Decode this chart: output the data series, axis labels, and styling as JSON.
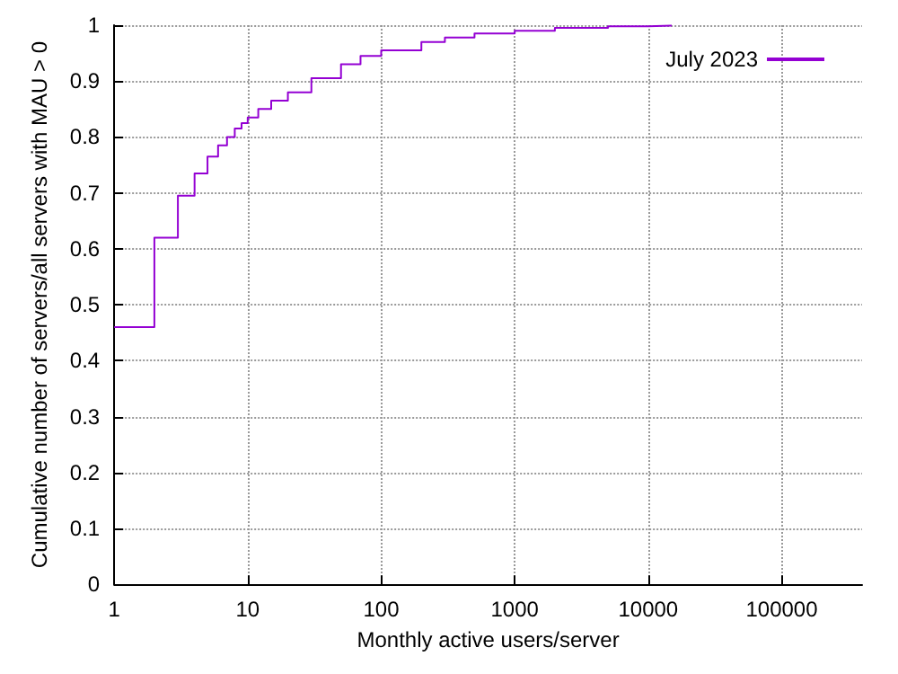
{
  "chart_data": {
    "type": "step",
    "xlabel": "Monthly active users/server",
    "ylabel": "Cumulative number of servers/all servers with MAU > 0",
    "series": [
      {
        "name": "July 2023",
        "color": "#9400d3",
        "x": [
          1,
          2,
          3,
          4,
          5,
          6,
          7,
          8,
          9,
          10,
          12,
          15,
          20,
          30,
          50,
          70,
          100,
          200,
          300,
          500,
          1000,
          2000,
          5000,
          10000,
          15000
        ],
        "values": [
          0.46,
          0.62,
          0.695,
          0.735,
          0.765,
          0.785,
          0.8,
          0.815,
          0.825,
          0.835,
          0.85,
          0.865,
          0.88,
          0.905,
          0.93,
          0.945,
          0.955,
          0.97,
          0.978,
          0.985,
          0.99,
          0.995,
          0.998,
          0.999,
          1
        ]
      }
    ],
    "log": "x",
    "xlim": [
      1,
      400000
    ],
    "xticks": [
      1,
      10,
      100,
      1000,
      10000,
      100000
    ],
    "ylim": [
      0,
      1
    ],
    "yticks": [
      0,
      0.1,
      0.2,
      0.3,
      0.4,
      0.5,
      0.6,
      0.7,
      0.8,
      0.9,
      1
    ],
    "grid": true,
    "legend": "top right",
    "line_style": "solid",
    "marker": "none"
  }
}
